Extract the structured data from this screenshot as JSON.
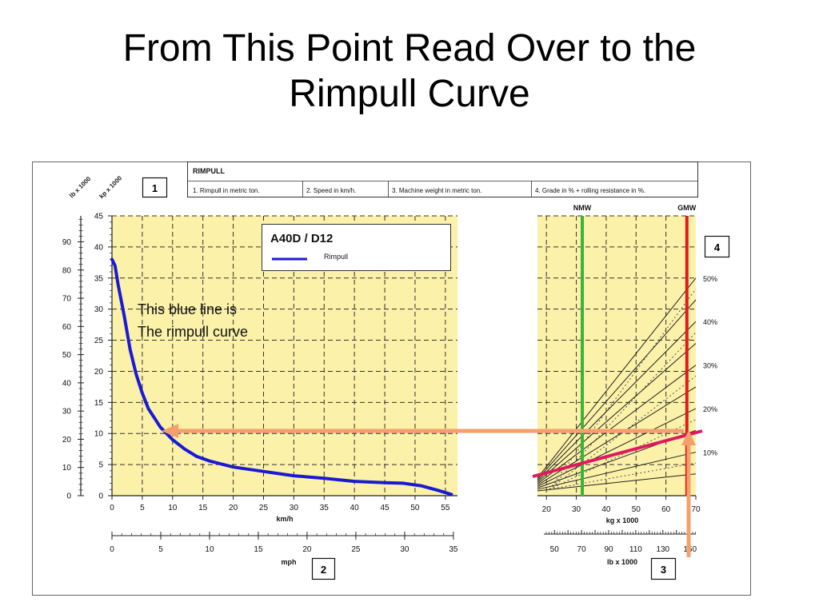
{
  "slide": {
    "title_line1": "From This Point Read Over to the",
    "title_line2": "Rimpull Curve"
  },
  "header": {
    "title": "RIMPULL",
    "boxes": [
      "1. Rimpull in metric ton.",
      "2. Speed in km/h.",
      "3. Machine weight in metric ton.",
      "4. Grade in % + rolling resistance in %."
    ]
  },
  "markers": {
    "m1": "1",
    "m2": "2",
    "m3": "3",
    "m4": "4"
  },
  "colors": {
    "chart_bg": "#fbf1a8",
    "rimpull": "#1a1ad6",
    "nmw": "#3bb33b",
    "gmw": "#e01b1b",
    "arrow": "#f4a06c",
    "grade_line": "#e2185f"
  },
  "annotation": {
    "line1": "This blue line is",
    "line2": "The rimpull curve"
  },
  "chart_data": [
    {
      "type": "line",
      "legend_title": "A40D / D12",
      "series": [
        {
          "name": "Rimpull",
          "x": [
            0,
            0.5,
            1,
            1.5,
            2,
            3,
            4,
            5,
            6,
            7,
            8,
            9,
            10,
            12,
            14,
            16,
            18,
            20,
            25,
            30,
            35,
            40,
            45,
            48,
            51,
            54,
            56
          ],
          "y": [
            38,
            37,
            34,
            31.5,
            29,
            23.5,
            19.5,
            16.5,
            14,
            12.5,
            11,
            10,
            9,
            7.5,
            6.3,
            5.6,
            5.1,
            4.6,
            3.9,
            3.2,
            2.8,
            2.3,
            2.1,
            2,
            1.6,
            0.8,
            0.2
          ]
        }
      ],
      "xlabel": "km/h",
      "xlim": [
        0,
        57
      ],
      "xticks": [
        0,
        5,
        10,
        15,
        20,
        25,
        30,
        35,
        40,
        45,
        50,
        55
      ],
      "ylim_kp": [
        0,
        45
      ],
      "yticks_kp": [
        0,
        5,
        10,
        15,
        20,
        25,
        30,
        35,
        40,
        45
      ],
      "ylabel_kp": "kp x 1000",
      "yticks_lb": [
        0,
        10,
        20,
        30,
        40,
        50,
        60,
        70,
        80,
        90
      ],
      "ylabel_lb": "lb x 1000",
      "mph_ticks": [
        0,
        5,
        10,
        15,
        20,
        25,
        30,
        35
      ],
      "mph_label": "mph",
      "grid": true
    },
    {
      "type": "line",
      "xlabel": "kg x 1000",
      "xlim": [
        17,
        70
      ],
      "xticks": [
        20,
        30,
        40,
        50,
        60,
        70
      ],
      "lb_ticks": [
        50,
        70,
        90,
        110,
        130,
        150
      ],
      "lb_label": "lb x 1000",
      "weight_lines": [
        {
          "name": "NMW",
          "x": 32
        },
        {
          "name": "GMW",
          "x": 67
        }
      ],
      "grades": [
        {
          "label": "10%",
          "end_y": 7.0
        },
        {
          "label": "20%",
          "end_y": 14.0
        },
        {
          "label": "30%",
          "end_y": 21.0
        },
        {
          "label": "40%",
          "end_y": 28.0
        },
        {
          "label": "50%",
          "end_y": 35.0
        }
      ],
      "grade_solid_end_y": [
        3.5,
        7.0,
        10.5,
        14.0,
        17.5,
        21.0,
        24.5,
        28.0,
        31.5,
        35.0
      ],
      "grade_dotted_end_y": [
        5.25,
        12.25,
        19.25,
        26.25,
        33.25
      ],
      "grid": true
    }
  ]
}
